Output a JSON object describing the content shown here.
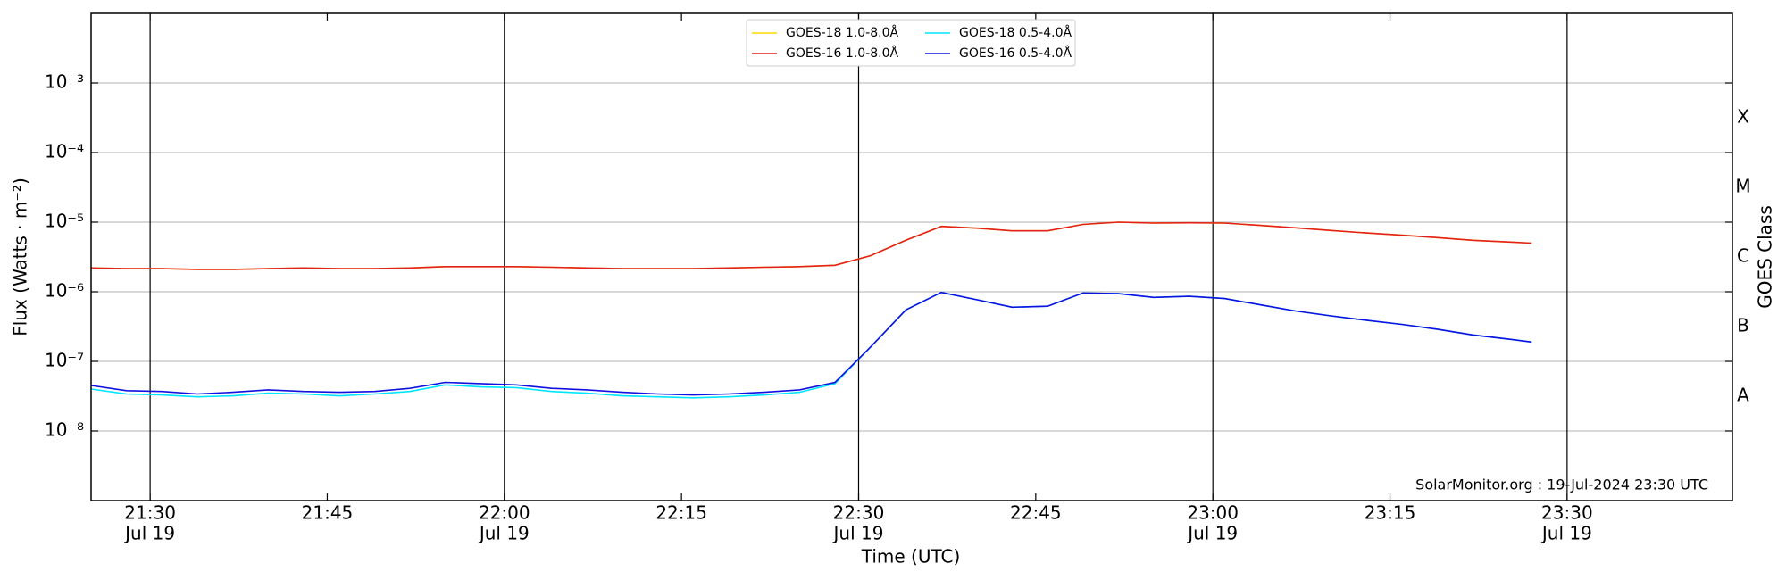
{
  "chart_data": {
    "type": "line",
    "xlabel": "Time (UTC)",
    "ylabel": "Flux (Watts · m⁻²)",
    "y2label": "GOES Class",
    "annotation": "SolarMonitor.org : 19-Jul-2024 23:30 UTC",
    "log_y": true,
    "grid": true,
    "legend_position": "upper center",
    "xlim": [
      "21:25",
      "23:44"
    ],
    "ylim": [
      1e-09,
      0.01
    ],
    "y2lim": [
      1e-09,
      0.01
    ],
    "xticks": [
      {
        "value": "21:30",
        "label": "21:30",
        "sublabel": "Jul 19"
      },
      {
        "value": "21:45",
        "label": "21:45"
      },
      {
        "value": "22:00",
        "label": "22:00",
        "sublabel": "Jul 19"
      },
      {
        "value": "22:15",
        "label": "22:15"
      },
      {
        "value": "22:30",
        "label": "22:30",
        "sublabel": "Jul 19"
      },
      {
        "value": "22:45",
        "label": "22:45"
      },
      {
        "value": "23:00",
        "label": "23:00",
        "sublabel": "Jul 19"
      },
      {
        "value": "23:15",
        "label": "23:15"
      },
      {
        "value": "23:30",
        "label": "23:30",
        "sublabel": "Jul 19"
      }
    ],
    "yticks": [
      {
        "value": 1e-08,
        "label": "10⁻⁸"
      },
      {
        "value": 1e-07,
        "label": "10⁻⁷"
      },
      {
        "value": 1e-06,
        "label": "10⁻⁶"
      },
      {
        "value": 1e-05,
        "label": "10⁻⁵"
      },
      {
        "value": 0.0001,
        "label": "10⁻⁴"
      },
      {
        "value": 0.001,
        "label": "10⁻³"
      }
    ],
    "y2ticks": [
      {
        "value": 3.16e-08,
        "label": "A"
      },
      {
        "value": 3.16e-07,
        "label": "B"
      },
      {
        "value": 3.16e-06,
        "label": "C"
      },
      {
        "value": 3.16e-05,
        "label": "M"
      },
      {
        "value": 0.000316,
        "label": "X"
      }
    ],
    "x": [
      "21:25",
      "21:28",
      "21:31",
      "21:34",
      "21:37",
      "21:40",
      "21:43",
      "21:46",
      "21:49",
      "21:52",
      "21:55",
      "21:58",
      "22:01",
      "22:04",
      "22:07",
      "22:10",
      "22:13",
      "22:16",
      "22:19",
      "22:22",
      "22:25",
      "22:28",
      "22:31",
      "22:34",
      "22:37",
      "22:40",
      "22:43",
      "22:46",
      "22:49",
      "22:52",
      "22:55",
      "22:58",
      "23:01",
      "23:04",
      "23:07",
      "23:10",
      "23:13",
      "23:16",
      "23:19",
      "23:22",
      "23:25",
      "23:27"
    ],
    "series": [
      {
        "name": "GOES-18 1.0-8.0Å",
        "color": "#ffd700",
        "values": [
          2.2e-06,
          2.15e-06,
          2.15e-06,
          2.1e-06,
          2.1e-06,
          2.15e-06,
          2.2e-06,
          2.15e-06,
          2.15e-06,
          2.2e-06,
          2.3e-06,
          2.3e-06,
          2.3e-06,
          2.25e-06,
          2.2e-06,
          2.15e-06,
          2.15e-06,
          2.15e-06,
          2.2e-06,
          2.25e-06,
          2.3e-06,
          2.4e-06,
          3.3e-06,
          5.5e-06,
          8.7e-06,
          8.2e-06,
          7.5e-06,
          7.5e-06,
          9.3e-06,
          1e-05,
          9.7e-06,
          9.8e-06,
          9.7e-06,
          9e-06,
          8.3e-06,
          7.6e-06,
          7e-06,
          6.5e-06,
          6e-06,
          5.5e-06,
          5.2e-06,
          5e-06
        ]
      },
      {
        "name": "GOES-16 1.0-8.0Å",
        "color": "#e3211c",
        "values": [
          2.2e-06,
          2.15e-06,
          2.15e-06,
          2.1e-06,
          2.1e-06,
          2.15e-06,
          2.2e-06,
          2.15e-06,
          2.15e-06,
          2.2e-06,
          2.3e-06,
          2.3e-06,
          2.3e-06,
          2.25e-06,
          2.2e-06,
          2.15e-06,
          2.15e-06,
          2.15e-06,
          2.2e-06,
          2.25e-06,
          2.3e-06,
          2.4e-06,
          3.3e-06,
          5.5e-06,
          8.7e-06,
          8.2e-06,
          7.5e-06,
          7.5e-06,
          9.3e-06,
          1e-05,
          9.7e-06,
          9.8e-06,
          9.7e-06,
          9e-06,
          8.3e-06,
          7.6e-06,
          7e-06,
          6.5e-06,
          6e-06,
          5.5e-06,
          5.2e-06,
          5e-06
        ]
      },
      {
        "name": "GOES-18 0.5-4.0Å",
        "color": "#00e5ff",
        "values": [
          4e-08,
          3.4e-08,
          3.3e-08,
          3.1e-08,
          3.2e-08,
          3.5e-08,
          3.4e-08,
          3.2e-08,
          3.4e-08,
          3.7e-08,
          4.6e-08,
          4.3e-08,
          4.2e-08,
          3.7e-08,
          3.5e-08,
          3.2e-08,
          3.1e-08,
          3e-08,
          3.1e-08,
          3.3e-08,
          3.6e-08,
          4.8e-08,
          1.6e-07,
          5.5e-07,
          9.8e-07,
          7.7e-07,
          6e-07,
          6.2e-07,
          9.6e-07,
          9.4e-07,
          8.3e-07,
          8.6e-07,
          8e-07,
          6.5e-07,
          5.3e-07,
          4.5e-07,
          3.9e-07,
          3.4e-07,
          2.9e-07,
          2.4e-07,
          2.1e-07,
          1.9e-07
        ]
      },
      {
        "name": "GOES-16 0.5-4.0Å",
        "color": "#1010e0",
        "values": [
          4.5e-08,
          3.8e-08,
          3.7e-08,
          3.4e-08,
          3.6e-08,
          3.9e-08,
          3.7e-08,
          3.6e-08,
          3.7e-08,
          4.1e-08,
          5e-08,
          4.8e-08,
          4.6e-08,
          4.1e-08,
          3.9e-08,
          3.6e-08,
          3.4e-08,
          3.3e-08,
          3.4e-08,
          3.6e-08,
          3.9e-08,
          5e-08,
          1.6e-07,
          5.5e-07,
          9.8e-07,
          7.7e-07,
          6e-07,
          6.2e-07,
          9.6e-07,
          9.4e-07,
          8.3e-07,
          8.6e-07,
          8e-07,
          6.5e-07,
          5.3e-07,
          4.5e-07,
          3.9e-07,
          3.4e-07,
          2.9e-07,
          2.4e-07,
          2.1e-07,
          1.9e-07
        ]
      }
    ]
  }
}
